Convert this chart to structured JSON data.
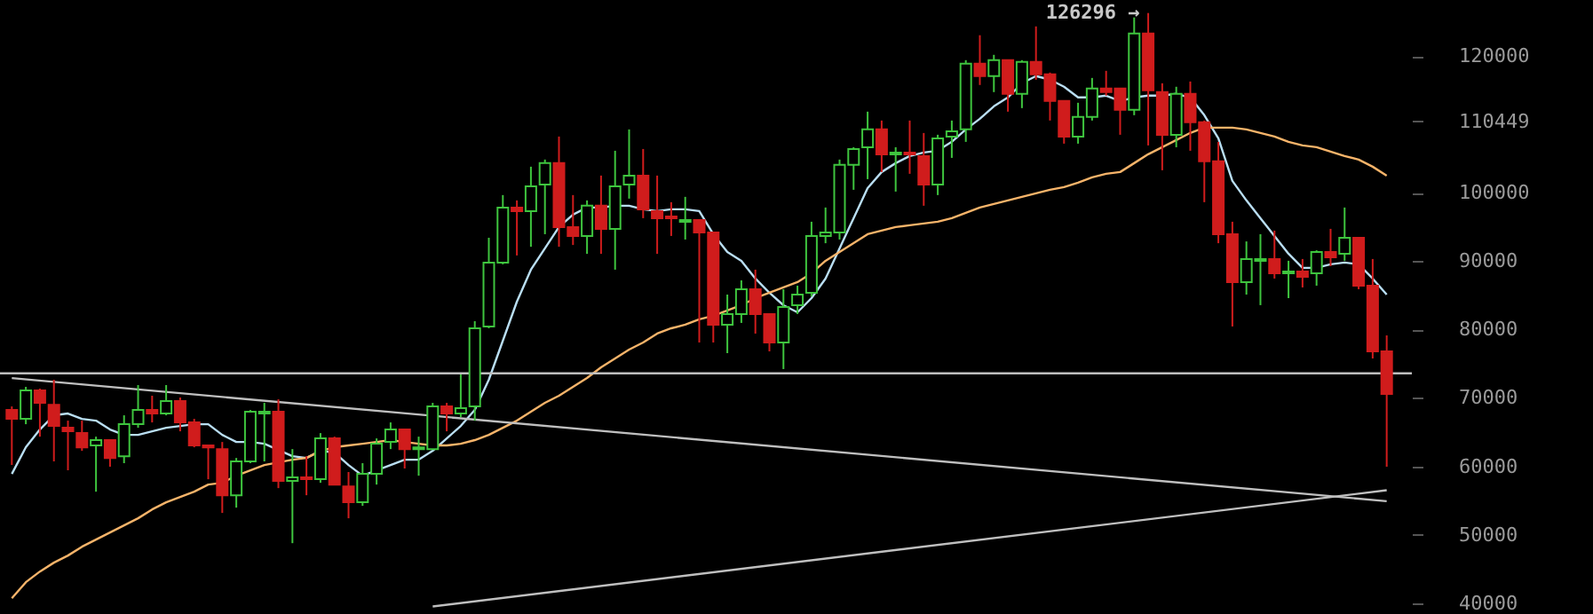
{
  "chart_data": {
    "type": "candlestick",
    "categories": [
      null,
      null,
      null,
      null,
      null,
      null,
      null,
      null,
      null,
      null,
      null,
      null,
      null,
      null,
      null,
      null,
      null,
      null,
      null,
      null,
      null,
      null,
      null,
      null,
      null,
      null,
      null,
      null,
      null,
      null,
      null,
      null,
      null,
      null,
      null,
      null,
      null,
      null,
      null,
      null,
      null,
      null,
      null,
      null,
      null,
      null,
      null,
      null,
      null,
      null,
      null,
      null,
      null,
      null,
      null,
      null,
      null,
      null,
      null,
      null,
      null,
      null,
      null,
      null,
      null,
      null,
      null,
      null,
      null,
      null,
      null,
      null,
      null,
      null,
      null,
      null,
      null,
      null,
      null,
      null,
      null,
      null,
      null,
      null,
      null,
      null,
      null,
      null,
      null,
      null,
      null,
      null,
      null,
      null,
      null,
      null,
      null,
      null,
      null
    ],
    "ohlc": [
      [
        68240,
        68760,
        60200,
        66940
      ],
      [
        66940,
        71620,
        66160,
        71100
      ],
      [
        71100,
        71360,
        64340,
        69280
      ],
      [
        68990,
        72660,
        60720,
        65900
      ],
      [
        65640,
        66680,
        59420,
        65120
      ],
      [
        64860,
        66680,
        62260,
        62780
      ],
      [
        63040,
        64340,
        56290,
        63820
      ],
      [
        63820,
        63820,
        59940,
        61220
      ],
      [
        61480,
        67460,
        60460,
        66160
      ],
      [
        66160,
        71880,
        65640,
        68240
      ],
      [
        68240,
        70320,
        66420,
        67720
      ],
      [
        67720,
        71880,
        67460,
        69540
      ],
      [
        69540,
        70060,
        65120,
        66420
      ],
      [
        66420,
        66940,
        62780,
        63040
      ],
      [
        63040,
        63040,
        58110,
        62780
      ],
      [
        62520,
        63560,
        53180,
        55770
      ],
      [
        55770,
        61220,
        53960,
        60720
      ],
      [
        60720,
        68240,
        60460,
        67980
      ],
      [
        67720,
        69280,
        60720,
        67980
      ],
      [
        67980,
        69800,
        56810,
        57850
      ],
      [
        57850,
        62520,
        48760,
        58370
      ],
      [
        58370,
        61480,
        55770,
        58110
      ],
      [
        58110,
        64860,
        57590,
        64080
      ],
      [
        64080,
        64340,
        57330,
        57330
      ],
      [
        57070,
        59160,
        52400,
        54740
      ],
      [
        54740,
        60460,
        54220,
        58890
      ],
      [
        58890,
        64080,
        57330,
        63300
      ],
      [
        63560,
        66420,
        62520,
        65380
      ],
      [
        65380,
        65380,
        59680,
        62520
      ],
      [
        62520,
        64340,
        58630,
        62780
      ],
      [
        62520,
        69280,
        62520,
        68760
      ],
      [
        68760,
        69280,
        65120,
        67720
      ],
      [
        67720,
        73440,
        67200,
        68500
      ],
      [
        68760,
        81230,
        66680,
        80190
      ],
      [
        80450,
        93430,
        80190,
        89800
      ],
      [
        89800,
        99670,
        89540,
        97850
      ],
      [
        97850,
        98890,
        90840,
        97330
      ],
      [
        97330,
        103820,
        92110,
        100960
      ],
      [
        101220,
        104860,
        93950,
        104340
      ],
      [
        104340,
        108230,
        92110,
        94990
      ],
      [
        94990,
        99670,
        92370,
        93690
      ],
      [
        93690,
        98890,
        91070,
        98110
      ],
      [
        98110,
        102520,
        91070,
        94730
      ],
      [
        94730,
        106150,
        88760,
        100960
      ],
      [
        101220,
        109270,
        99150,
        102520
      ],
      [
        102520,
        106410,
        96290,
        97590
      ],
      [
        97330,
        102520,
        91070,
        96290
      ],
      [
        96550,
        98630,
        93690,
        96290
      ],
      [
        95770,
        99410,
        93170,
        96030
      ],
      [
        96030,
        96030,
        78110,
        94210
      ],
      [
        94210,
        94210,
        78110,
        80710
      ],
      [
        80710,
        85120,
        76550,
        82270
      ],
      [
        82270,
        87200,
        80970,
        85900
      ],
      [
        85900,
        88760,
        79410,
        82270
      ],
      [
        82270,
        82270,
        76810,
        78110
      ],
      [
        78110,
        85900,
        74220,
        83310
      ],
      [
        83570,
        86420,
        82270,
        85120
      ],
      [
        85380,
        95770,
        84860,
        93690
      ],
      [
        93690,
        97850,
        92630,
        94210
      ],
      [
        94210,
        104860,
        93170,
        104080
      ],
      [
        104080,
        106670,
        100440,
        106410
      ],
      [
        106670,
        111870,
        102000,
        109270
      ],
      [
        109270,
        110570,
        103040,
        105630
      ],
      [
        105630,
        106670,
        100180,
        105890
      ],
      [
        105890,
        110570,
        102780,
        105630
      ],
      [
        105370,
        108750,
        98110,
        101220
      ],
      [
        101220,
        108490,
        99670,
        107970
      ],
      [
        108230,
        110570,
        105110,
        109010
      ],
      [
        109270,
        119400,
        107450,
        118880
      ],
      [
        118880,
        123050,
        115770,
        117060
      ],
      [
        117060,
        120180,
        114730,
        119400
      ],
      [
        119400,
        119400,
        111870,
        114470
      ],
      [
        114470,
        119400,
        112390,
        119140
      ],
      [
        119140,
        124340,
        116540,
        117320
      ],
      [
        117320,
        117580,
        110570,
        113430
      ],
      [
        113430,
        113430,
        107190,
        108230
      ],
      [
        108230,
        113170,
        107190,
        111090
      ],
      [
        111090,
        116800,
        110570,
        115250
      ],
      [
        115250,
        117840,
        114210,
        114730
      ],
      [
        115250,
        115250,
        108490,
        112130
      ],
      [
        112130,
        125650,
        111350,
        123310
      ],
      [
        123310,
        126296,
        106930,
        114990
      ],
      [
        114730,
        116020,
        103300,
        108490
      ],
      [
        108490,
        115510,
        106670,
        114470
      ],
      [
        114470,
        116280,
        106150,
        110310
      ],
      [
        110310,
        110570,
        98630,
        104600
      ],
      [
        104600,
        107450,
        92630,
        93950
      ],
      [
        93950,
        95770,
        80450,
        86940
      ],
      [
        86940,
        92890,
        85120,
        90320
      ],
      [
        90060,
        93950,
        83570,
        90320
      ],
      [
        90320,
        94470,
        87460,
        88240
      ],
      [
        88240,
        90060,
        84600,
        88500
      ],
      [
        88500,
        90320,
        86160,
        87720
      ],
      [
        88240,
        91590,
        86420,
        91330
      ],
      [
        91330,
        94730,
        89280,
        90580
      ],
      [
        91070,
        97850,
        90060,
        93430
      ],
      [
        93430,
        93430,
        85900,
        86420
      ],
      [
        86420,
        90320,
        75770,
        76810
      ],
      [
        76810,
        79150,
        59940,
        70580
      ]
    ],
    "colors": [
      "#d01c1c",
      "#3ec43e",
      "#d01c1c",
      "#d01c1c",
      "#d01c1c",
      "#d01c1c",
      "#3ec43e",
      "#d01c1c",
      "#3ec43e",
      "#3ec43e",
      "#d01c1c",
      "#3ec43e",
      "#d01c1c",
      "#d01c1c",
      "#d01c1c",
      "#d01c1c",
      "#3ec43e",
      "#3ec43e",
      "#3ec43e",
      "#d01c1c",
      "#3ec43e",
      "#d01c1c",
      "#3ec43e",
      "#d01c1c",
      "#d01c1c",
      "#3ec43e",
      "#3ec43e",
      "#3ec43e",
      "#d01c1c",
      "#3ec43e",
      "#3ec43e",
      "#d01c1c",
      "#3ec43e",
      "#3ec43e",
      "#3ec43e",
      "#3ec43e",
      "#d01c1c",
      "#3ec43e",
      "#3ec43e",
      "#d01c1c",
      "#d01c1c",
      "#3ec43e",
      "#d01c1c",
      "#3ec43e",
      "#3ec43e",
      "#d01c1c",
      "#d01c1c",
      "#d01c1c",
      "#3ec43e",
      "#d01c1c",
      "#d01c1c",
      "#3ec43e",
      "#3ec43e",
      "#d01c1c",
      "#d01c1c",
      "#3ec43e",
      "#3ec43e",
      "#3ec43e",
      "#3ec43e",
      "#3ec43e",
      "#3ec43e",
      "#3ec43e",
      "#d01c1c",
      "#3ec43e",
      "#d01c1c",
      "#d01c1c",
      "#3ec43e",
      "#3ec43e",
      "#3ec43e",
      "#d01c1c",
      "#3ec43e",
      "#d01c1c",
      "#3ec43e",
      "#d01c1c",
      "#d01c1c",
      "#d01c1c",
      "#3ec43e",
      "#3ec43e",
      "#d01c1c",
      "#d01c1c",
      "#3ec43e",
      "#d01c1c",
      "#d01c1c",
      "#3ec43e",
      "#d01c1c",
      "#d01c1c",
      "#d01c1c",
      "#d01c1c",
      "#3ec43e",
      "#3ec43e",
      "#d01c1c",
      "#3ec43e",
      "#d01c1c",
      "#3ec43e",
      "#d01c1c",
      "#3ec43e",
      "#d01c1c",
      "#d01c1c",
      "#d01c1c"
    ],
    "series": [
      {
        "type": "line",
        "color": "#b9def2",
        "values": [
          58890,
          62790,
          65380,
          67460,
          67720,
          66940,
          66680,
          65380,
          64600,
          64600,
          65120,
          65640,
          65900,
          66160,
          66160,
          64600,
          63560,
          63560,
          63300,
          62400,
          61490,
          61230,
          62270,
          62010,
          60190,
          58630,
          59410,
          60190,
          60970,
          60970,
          62270,
          64080,
          65900,
          68240,
          72660,
          78370,
          84080,
          88760,
          91880,
          94990,
          96810,
          97850,
          97850,
          98110,
          98110,
          97590,
          97330,
          97590,
          97590,
          97330,
          93950,
          91360,
          90060,
          87460,
          85380,
          83560,
          82520,
          84600,
          87460,
          91880,
          96290,
          100700,
          103040,
          104340,
          105380,
          105900,
          106160,
          107460,
          109270,
          110830,
          112650,
          113950,
          116030,
          117070,
          116550,
          115510,
          113950,
          113950,
          114210,
          113430,
          113950,
          114210,
          114210,
          114470,
          113950,
          111350,
          107970,
          101740,
          98890,
          96290,
          93690,
          91100,
          89020,
          89020,
          89540,
          89800,
          89540,
          87460,
          85120
        ]
      },
      {
        "type": "line",
        "color": "#f7b46a",
        "values": [
          40710,
          43050,
          44610,
          45910,
          46950,
          48240,
          49280,
          50320,
          51360,
          52400,
          53690,
          54730,
          55520,
          56300,
          57330,
          57590,
          58630,
          59410,
          60190,
          60580,
          60970,
          61230,
          62270,
          62790,
          63050,
          63300,
          63560,
          63830,
          63560,
          63300,
          63050,
          63050,
          63300,
          63830,
          64600,
          65640,
          66680,
          67980,
          69280,
          70320,
          71620,
          72920,
          74480,
          75770,
          77070,
          78110,
          79410,
          80190,
          80710,
          81490,
          82010,
          82790,
          83560,
          84600,
          85380,
          86160,
          86940,
          88240,
          90060,
          91360,
          92650,
          93950,
          94470,
          94990,
          95250,
          95510,
          95770,
          96290,
          97070,
          97850,
          98370,
          98890,
          99410,
          99930,
          100440,
          100830,
          101480,
          102260,
          102780,
          103040,
          104340,
          105640,
          106680,
          107720,
          108760,
          109530,
          109530,
          109530,
          109270,
          108760,
          108240,
          107460,
          106940,
          106680,
          106030,
          105380,
          104860,
          103820,
          102520
        ]
      },
      {
        "type": "line",
        "color": "#bfbfbf",
        "values": [
          72900,
          null,
          null,
          null,
          null,
          null,
          null,
          null,
          null,
          null,
          null,
          null,
          null,
          null,
          null,
          null,
          null,
          null,
          null,
          null,
          null,
          null,
          null,
          null,
          null,
          null,
          null,
          null,
          null,
          null,
          null,
          null,
          null,
          null,
          null,
          null,
          null,
          null,
          null,
          null,
          null,
          null,
          null,
          null,
          null,
          null,
          null,
          null,
          null,
          null,
          null,
          null,
          null,
          null,
          null,
          null,
          null,
          null,
          null,
          null,
          null,
          null,
          null,
          null,
          null,
          null,
          null,
          null,
          null,
          null,
          null,
          null,
          null,
          null,
          null,
          null,
          null,
          null,
          null,
          null,
          null,
          null,
          null,
          null,
          null,
          null,
          null,
          null,
          null,
          null,
          null,
          null,
          null,
          null,
          null,
          null,
          null,
          null,
          54900
        ]
      },
      {
        "type": "line",
        "color": "#bfbfbf",
        "values": [
          null,
          null,
          null,
          null,
          null,
          null,
          null,
          null,
          null,
          null,
          null,
          null,
          null,
          null,
          null,
          null,
          null,
          null,
          null,
          null,
          null,
          null,
          null,
          null,
          null,
          null,
          null,
          null,
          null,
          null,
          39500,
          null,
          null,
          null,
          null,
          null,
          null,
          null,
          null,
          null,
          null,
          null,
          null,
          null,
          null,
          null,
          null,
          null,
          null,
          null,
          null,
          null,
          null,
          null,
          null,
          null,
          null,
          null,
          null,
          null,
          null,
          null,
          null,
          null,
          null,
          null,
          null,
          null,
          null,
          null,
          null,
          null,
          null,
          null,
          null,
          null,
          null,
          null,
          null,
          null,
          null,
          null,
          null,
          null,
          null,
          null,
          null,
          null,
          null,
          null,
          null,
          null,
          null,
          null,
          null,
          null,
          null,
          null,
          56500
        ]
      }
    ],
    "ref_lines": [
      {
        "axis": "y",
        "value": 73600,
        "color": "#bfbfbf"
      }
    ],
    "annotations": [
      "126296 →"
    ],
    "ylim": [
      38400,
      128200
    ],
    "yticks": [
      40000,
      50000,
      60000,
      70000,
      80000,
      90000,
      100000,
      {
        "value": 110449,
        "label": "110449"
      },
      120000
    ],
    "tick_labels": "y"
  }
}
